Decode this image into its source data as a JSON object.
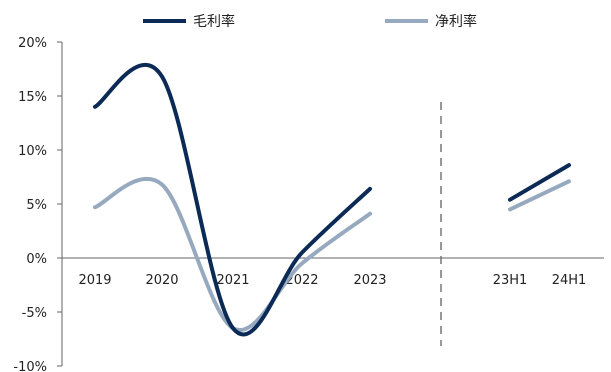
{
  "chart_data": {
    "type": "line",
    "title": "",
    "xlabel": "",
    "ylabel": "",
    "categories": [
      "2019",
      "2020",
      "2021",
      "2022",
      "2023",
      "23H1",
      "24H1"
    ],
    "y_ticks": [
      "20%",
      "15%",
      "10%",
      "5%",
      "0%",
      "-5%",
      "-10%"
    ],
    "ylim": [
      -10,
      20
    ],
    "grid": false,
    "legend_position": "top",
    "series": [
      {
        "name": "毛利率",
        "color": "#0b2a55",
        "values": [
          14.0,
          16.8,
          -6.5,
          0.5,
          6.4,
          5.4,
          8.6
        ]
      },
      {
        "name": "净利率",
        "color": "#97a9bf",
        "values": [
          4.7,
          6.8,
          -6.5,
          -0.5,
          4.1,
          4.5,
          7.1
        ]
      }
    ]
  }
}
